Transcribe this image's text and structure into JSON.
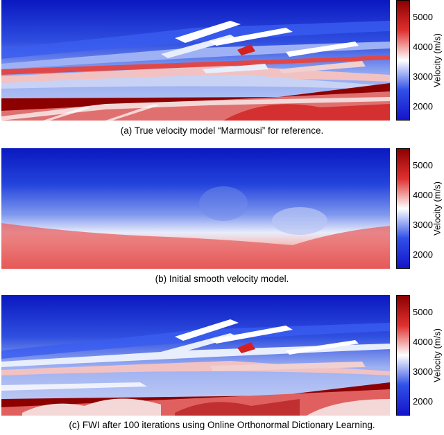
{
  "colormap": {
    "low": "#1414c8",
    "mid": "#ffffff",
    "high": "#8c0000"
  },
  "panels": [
    {
      "id": "a",
      "caption": "(a) True velocity model “Marmousi” for reference.",
      "colorbar": {
        "label": "Velocity (m/s)",
        "ticks": [
          "5000",
          "4000",
          "3000",
          "2000"
        ],
        "range": [
          1500,
          5500
        ]
      }
    },
    {
      "id": "b",
      "caption": "(b) Initial smooth velocity model.",
      "colorbar": {
        "label": "Velocity (m/s)",
        "ticks": [
          "5000",
          "4000",
          "3000",
          "2000"
        ],
        "range": [
          1500,
          5500
        ]
      }
    },
    {
      "id": "c",
      "caption": "(c) FWI after 100 iterations using Online Orthonormal Dictionary Learning.",
      "colorbar": {
        "label": "Velocity (m/s)",
        "ticks": [
          "5000",
          "4000",
          "3000",
          "2000"
        ],
        "range": [
          1500,
          5500
        ]
      }
    }
  ]
}
